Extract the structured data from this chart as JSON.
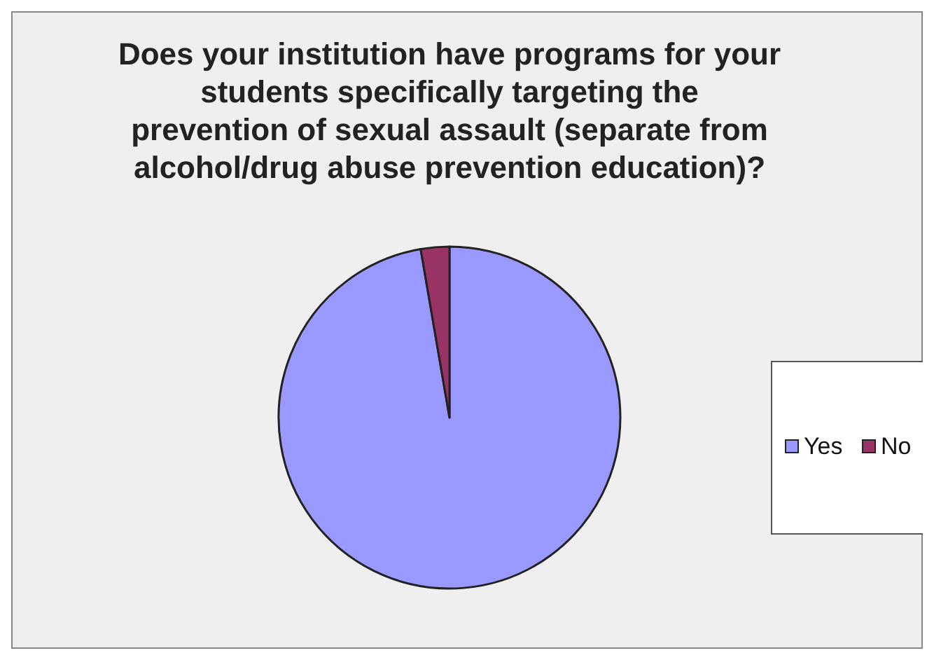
{
  "chart_data": {
    "type": "pie",
    "title": "Does your institution have programs for your students specifically targeting the prevention of sexual assault (separate from alcohol/drug abuse prevention education)?",
    "categories": [
      "Yes",
      "No"
    ],
    "values": [
      97.3,
      2.7
    ],
    "colors": [
      "#9999ff",
      "#993366"
    ],
    "legend": "right"
  }
}
